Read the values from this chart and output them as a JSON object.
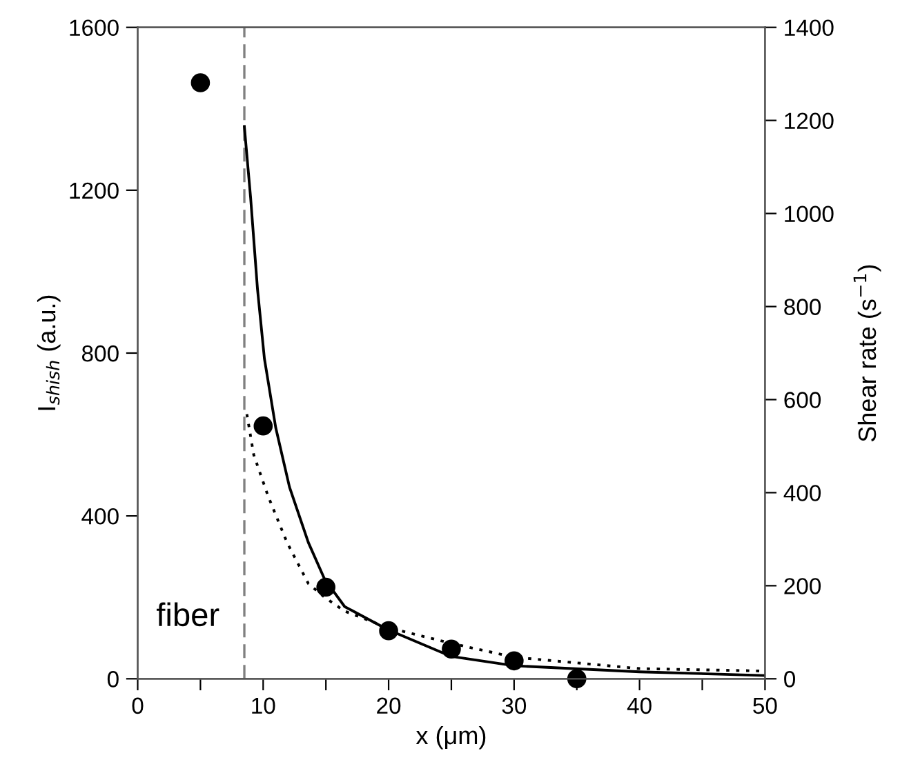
{
  "chart_data": {
    "type": "line",
    "xlabel": "x (μm)",
    "ylabel": "I$_{shish}$ (a.u.)",
    "y2label": "Shear rate (s$^{−1}$)",
    "xlim": [
      0,
      50
    ],
    "xticks": [
      0,
      {
        "value": 5,
        "label": null
      },
      10,
      {
        "value": 15,
        "label": null
      },
      20,
      {
        "value": 25,
        "label": null
      },
      30,
      {
        "value": 35,
        "label": null
      },
      40,
      {
        "value": 45,
        "label": null
      },
      50
    ],
    "ylim": [
      0,
      1600
    ],
    "yticks": [
      0,
      400,
      800,
      1200,
      1600
    ],
    "y2lim": [
      0,
      1400
    ],
    "y2ticks": [
      0,
      200,
      400,
      600,
      800,
      1000,
      1200,
      1400
    ],
    "series": [
      {
        "type": "scatter",
        "color": "#000000",
        "marker": "circle",
        "x": [
          5,
          10,
          15,
          20,
          25,
          30,
          35
        ],
        "values": [
          1464,
          621,
          225,
          118,
          73,
          44,
          0
        ]
      },
      {
        "axis": "y2",
        "color": "#000000",
        "line_style": "solid",
        "x": [
          8.5,
          9.0,
          9.55,
          10.1,
          11.0,
          12.1,
          13.6,
          14.9,
          16.5,
          19.9,
          25,
          30,
          40,
          50
        ],
        "values": [
          1187,
          1034,
          837,
          688,
          540,
          412,
          293,
          214,
          155,
          106,
          48,
          28,
          15,
          7
        ]
      },
      {
        "color": "#000000",
        "line_style": "dotted",
        "x": [
          8.7,
          9.25,
          10.4,
          11.9,
          13.6,
          14.9,
          16.5,
          19.9,
          25,
          30,
          40,
          50
        ],
        "values": [
          650,
          550,
          448,
          335,
          234,
          200,
          166,
          126,
          87,
          53,
          25,
          19
        ]
      }
    ],
    "ref_lines": [
      {
        "axis": "x",
        "value": 8.5,
        "color": "#808080",
        "line_style": "dashed"
      }
    ],
    "annotations": [
      "fiber"
    ]
  }
}
